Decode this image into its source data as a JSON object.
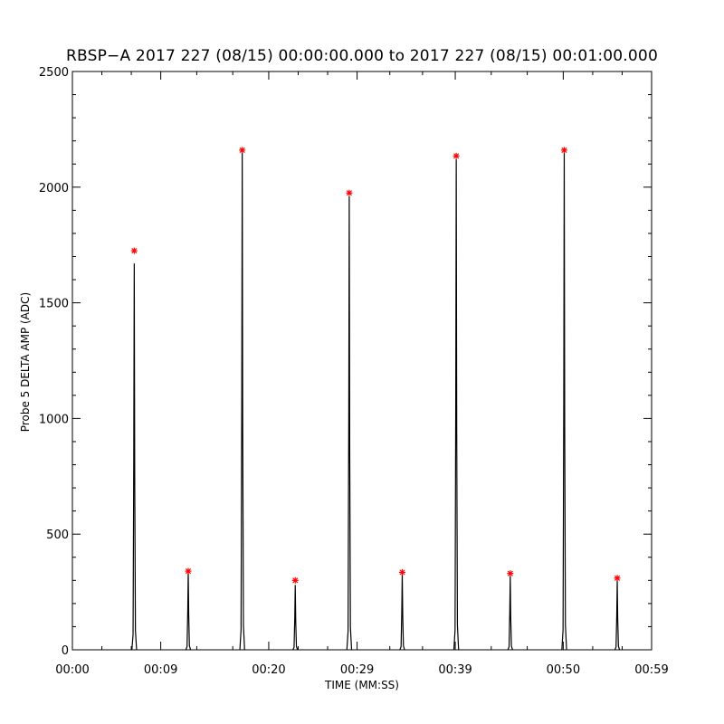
{
  "chart_data": {
    "type": "line",
    "title": "RBSP−A 2017 227 (08/15) 00:00:00.000 to 2017 227 (08/15) 00:01:00.000",
    "xlabel": "TIME (MM:SS)",
    "ylabel": "Probe 5 DELTA AMP (ADC)",
    "xlim": [
      0,
      59
    ],
    "ylim": [
      0,
      2500
    ],
    "x_ticks": [
      {
        "value": 0,
        "label": "00:00"
      },
      {
        "value": 9,
        "label": "00:09"
      },
      {
        "value": 20,
        "label": "00:20"
      },
      {
        "value": 29,
        "label": "00:29"
      },
      {
        "value": 39,
        "label": "00:39"
      },
      {
        "value": 50,
        "label": "00:50"
      },
      {
        "value": 59,
        "label": "00:59"
      }
    ],
    "y_ticks": [
      {
        "value": 0,
        "label": "0"
      },
      {
        "value": 500,
        "label": "500"
      },
      {
        "value": 1000,
        "label": "1000"
      },
      {
        "value": 1500,
        "label": "1500"
      },
      {
        "value": 2000,
        "label": "2000"
      },
      {
        "value": 2500,
        "label": "2500"
      }
    ],
    "grid": false,
    "series": [
      {
        "color": "#000000",
        "spikes": [
          {
            "t": 6.3,
            "peak": 1670
          },
          {
            "t": 11.8,
            "peak": 340
          },
          {
            "t": 17.3,
            "peak": 2150
          },
          {
            "t": 22.7,
            "peak": 280
          },
          {
            "t": 28.2,
            "peak": 1960
          },
          {
            "t": 33.6,
            "peak": 330
          },
          {
            "t": 39.1,
            "peak": 2120
          },
          {
            "t": 44.6,
            "peak": 320
          },
          {
            "t": 50.1,
            "peak": 2150
          },
          {
            "t": 55.5,
            "peak": 300
          }
        ]
      }
    ],
    "markers": {
      "color": "#ff0000",
      "symbol": "asterisk",
      "points": [
        {
          "x": 6.3,
          "y": 1725
        },
        {
          "x": 11.8,
          "y": 340
        },
        {
          "x": 17.3,
          "y": 2160
        },
        {
          "x": 22.7,
          "y": 300
        },
        {
          "x": 28.2,
          "y": 1975
        },
        {
          "x": 33.6,
          "y": 335
        },
        {
          "x": 39.1,
          "y": 2135
        },
        {
          "x": 44.6,
          "y": 330
        },
        {
          "x": 50.1,
          "y": 2160
        },
        {
          "x": 55.5,
          "y": 310
        }
      ]
    }
  }
}
